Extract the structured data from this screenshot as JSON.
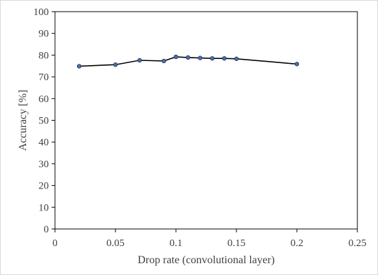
{
  "chart_data": {
    "type": "line",
    "title": "",
    "xlabel": "Drop rate (convolutional layer)",
    "ylabel": "Accuracy [%]",
    "xlim": [
      0,
      0.25
    ],
    "ylim": [
      0,
      100
    ],
    "x_ticks": [
      0,
      0.05,
      0.1,
      0.15,
      0.2,
      0.25
    ],
    "x_tick_labels": [
      "0",
      "0.05",
      "0.1",
      "0.15",
      "0.2",
      "0.25"
    ],
    "y_ticks": [
      0,
      10,
      20,
      30,
      40,
      50,
      60,
      70,
      80,
      90,
      100
    ],
    "y_tick_labels": [
      "0",
      "10",
      "20",
      "30",
      "40",
      "50",
      "60",
      "70",
      "80",
      "90",
      "100"
    ],
    "grid": false,
    "legend": "none",
    "series": [
      {
        "x": [
          0.02,
          0.05,
          0.07,
          0.09,
          0.1,
          0.11,
          0.12,
          0.13,
          0.14,
          0.15,
          0.2
        ],
        "y": [
          74.9,
          75.6,
          77.6,
          77.3,
          79.2,
          78.9,
          78.7,
          78.5,
          78.5,
          78.3,
          75.9
        ]
      }
    ],
    "colors": {
      "line": "#000000",
      "marker_fill": "#4a6fb3",
      "marker_stroke": "#1f2f4f",
      "axis": "#000000",
      "text": "#404040"
    }
  }
}
